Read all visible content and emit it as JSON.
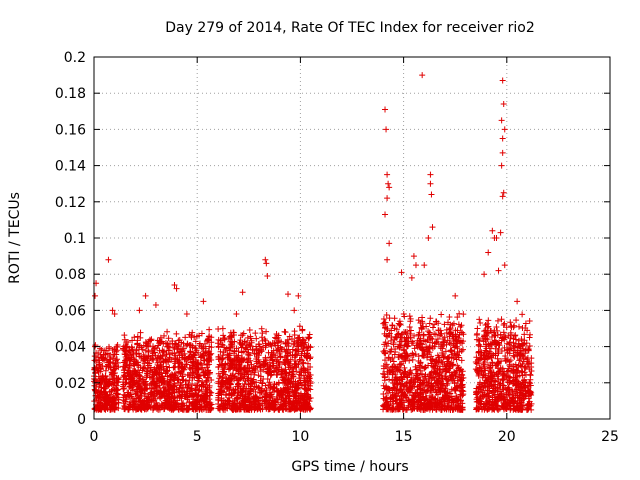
{
  "chart_data": {
    "type": "scatter",
    "title": "Day 279 of 2014, Rate Of TEC Index for receiver rio2",
    "xlabel": "GPS time / hours",
    "ylabel": "ROTI / TECUs",
    "xlim": [
      0,
      25
    ],
    "ylim": [
      0,
      0.2
    ],
    "xticks": [
      0,
      5,
      10,
      15,
      20,
      25
    ],
    "xtick_labels": [
      "0",
      "5",
      "10",
      "15",
      "20",
      "25"
    ],
    "yticks": [
      0,
      0.02,
      0.04,
      0.06,
      0.08,
      0.1,
      0.12,
      0.14,
      0.16,
      0.18,
      0.2
    ],
    "ytick_labels": [
      "0",
      "0.02",
      "0.04",
      "0.06",
      "0.08",
      "0.1",
      "0.12",
      "0.14",
      "0.16",
      "0.18",
      "0.2"
    ],
    "grid": true,
    "marker": "+",
    "marker_color": "#e00000",
    "segments": [
      {
        "start": 0.0,
        "end": 1.2,
        "base_max": 0.045,
        "spikes": [
          [
            0.1,
            0.075
          ],
          [
            0.05,
            0.068
          ],
          [
            0.7,
            0.088
          ],
          [
            0.9,
            0.06
          ],
          [
            1.0,
            0.058
          ]
        ]
      },
      {
        "start": 1.4,
        "end": 5.7,
        "base_max": 0.05,
        "spikes": [
          [
            2.5,
            0.068
          ],
          [
            3.0,
            0.063
          ],
          [
            3.9,
            0.074
          ],
          [
            4.0,
            0.072
          ],
          [
            5.3,
            0.065
          ],
          [
            4.5,
            0.058
          ],
          [
            2.2,
            0.06
          ]
        ]
      },
      {
        "start": 6.0,
        "end": 10.5,
        "base_max": 0.052,
        "spikes": [
          [
            7.2,
            0.07
          ],
          [
            8.3,
            0.088
          ],
          [
            8.35,
            0.086
          ],
          [
            8.4,
            0.079
          ],
          [
            9.4,
            0.069
          ],
          [
            9.9,
            0.068
          ],
          [
            9.7,
            0.06
          ],
          [
            6.9,
            0.058
          ]
        ]
      },
      {
        "start": 14.0,
        "end": 17.9,
        "base_max": 0.06,
        "spikes": [
          [
            14.1,
            0.171
          ],
          [
            14.15,
            0.16
          ],
          [
            14.2,
            0.135
          ],
          [
            14.3,
            0.128
          ],
          [
            14.25,
            0.13
          ],
          [
            14.2,
            0.122
          ],
          [
            14.1,
            0.113
          ],
          [
            14.3,
            0.097
          ],
          [
            14.2,
            0.088
          ],
          [
            15.9,
            0.19
          ],
          [
            16.3,
            0.135
          ],
          [
            16.3,
            0.13
          ],
          [
            16.35,
            0.124
          ],
          [
            16.4,
            0.106
          ],
          [
            16.2,
            0.1
          ],
          [
            15.5,
            0.09
          ],
          [
            15.6,
            0.085
          ],
          [
            16.0,
            0.085
          ],
          [
            14.9,
            0.081
          ],
          [
            15.4,
            0.078
          ],
          [
            17.5,
            0.068
          ]
        ]
      },
      {
        "start": 18.5,
        "end": 21.2,
        "base_max": 0.058,
        "spikes": [
          [
            19.8,
            0.187
          ],
          [
            19.85,
            0.174
          ],
          [
            19.75,
            0.165
          ],
          [
            19.9,
            0.16
          ],
          [
            19.8,
            0.155
          ],
          [
            19.8,
            0.147
          ],
          [
            19.75,
            0.14
          ],
          [
            19.85,
            0.125
          ],
          [
            19.8,
            0.123
          ],
          [
            19.3,
            0.104
          ],
          [
            19.5,
            0.1
          ],
          [
            19.4,
            0.1
          ],
          [
            19.7,
            0.103
          ],
          [
            19.1,
            0.092
          ],
          [
            18.9,
            0.08
          ],
          [
            19.9,
            0.085
          ],
          [
            20.5,
            0.065
          ],
          [
            19.6,
            0.082
          ]
        ]
      }
    ],
    "gaps": [
      [
        10.5,
        14.0
      ],
      [
        17.9,
        18.5
      ]
    ]
  }
}
